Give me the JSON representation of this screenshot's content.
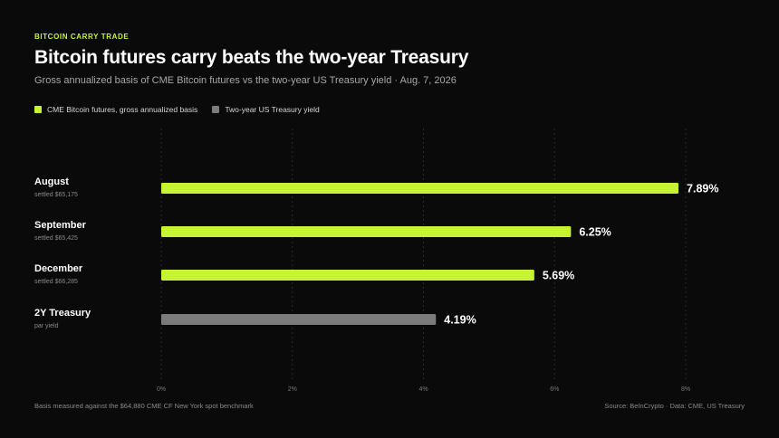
{
  "kicker": "BITCOIN CARRY TRADE",
  "title": "Bitcoin futures carry beats the two-year Treasury",
  "subtitle": "Gross annualized basis of CME Bitcoin futures vs the two-year US Treasury yield · Aug. 7, 2026",
  "legend": [
    {
      "label": "CME Bitcoin futures, gross annualized basis",
      "color": "#c6f432"
    },
    {
      "label": "Two-year US Treasury yield",
      "color": "#7b7b7b"
    }
  ],
  "footnote": "Basis measured against the $64,880 CME CF New York spot benchmark",
  "source": "Source: BeInCrypto · Data: CME, US Treasury",
  "chart_data": {
    "type": "bar",
    "orientation": "horizontal",
    "categories": [
      "August",
      "September",
      "December",
      "2Y Treasury"
    ],
    "sublabels": [
      "settled $65,175",
      "settled $65,425",
      "settled $66,285",
      "par yield"
    ],
    "values": [
      7.89,
      6.25,
      5.69,
      4.19
    ],
    "value_labels": [
      "7.89%",
      "6.25%",
      "5.69%",
      "4.19%"
    ],
    "bar_colors": [
      "#c6f432",
      "#c6f432",
      "#c6f432",
      "#7b7b7b"
    ],
    "xlim": [
      0,
      8
    ],
    "xticks": [
      0,
      2,
      4,
      6,
      8
    ],
    "xtick_labels": [
      "0%",
      "2%",
      "4%",
      "6%",
      "8%"
    ],
    "grid": true
  }
}
